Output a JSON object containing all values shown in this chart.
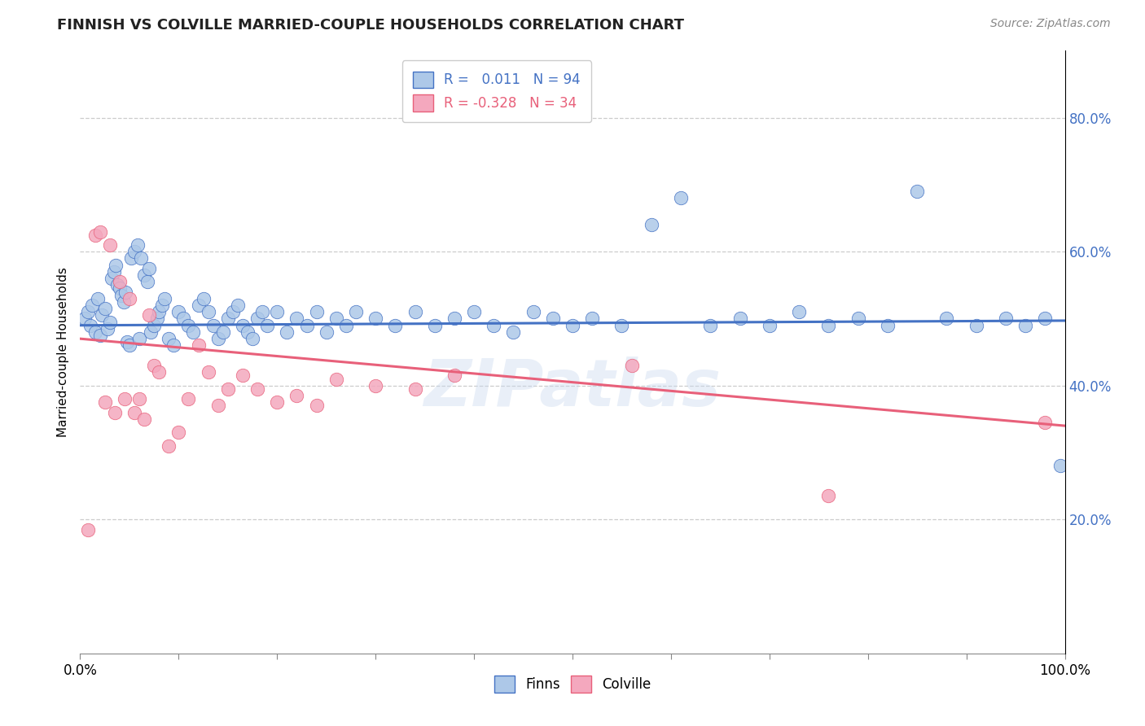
{
  "title": "FINNISH VS COLVILLE MARRIED-COUPLE HOUSEHOLDS CORRELATION CHART",
  "source": "Source: ZipAtlas.com",
  "ylabel": "Married-couple Households",
  "xlim": [
    0.0,
    1.0
  ],
  "ylim": [
    0.0,
    0.9
  ],
  "finn_R": 0.011,
  "finn_N": 94,
  "colville_R": -0.328,
  "colville_N": 34,
  "finn_color": "#adc8e8",
  "colville_color": "#f4a8be",
  "finn_line_color": "#4472c4",
  "colville_line_color": "#e8607a",
  "background_color": "#ffffff",
  "watermark": "ZIPatlas",
  "xtick_positions": [
    0.0,
    0.1,
    0.2,
    0.3,
    0.4,
    0.5,
    0.6,
    0.7,
    0.8,
    0.9,
    1.0
  ],
  "ytick_positions": [
    0.2,
    0.4,
    0.6,
    0.8
  ],
  "ytick_labels": [
    "20.0%",
    "40.0%",
    "60.0%",
    "80.0%"
  ],
  "finn_x": [
    0.005,
    0.008,
    0.01,
    0.012,
    0.015,
    0.018,
    0.02,
    0.022,
    0.025,
    0.028,
    0.03,
    0.032,
    0.034,
    0.036,
    0.038,
    0.04,
    0.042,
    0.044,
    0.046,
    0.048,
    0.05,
    0.052,
    0.055,
    0.058,
    0.06,
    0.062,
    0.065,
    0.068,
    0.07,
    0.072,
    0.075,
    0.078,
    0.08,
    0.083,
    0.086,
    0.09,
    0.095,
    0.1,
    0.105,
    0.11,
    0.115,
    0.12,
    0.125,
    0.13,
    0.135,
    0.14,
    0.145,
    0.15,
    0.155,
    0.16,
    0.165,
    0.17,
    0.175,
    0.18,
    0.185,
    0.19,
    0.2,
    0.21,
    0.22,
    0.23,
    0.24,
    0.25,
    0.26,
    0.27,
    0.28,
    0.3,
    0.32,
    0.34,
    0.36,
    0.38,
    0.4,
    0.42,
    0.44,
    0.46,
    0.48,
    0.5,
    0.52,
    0.55,
    0.58,
    0.61,
    0.64,
    0.67,
    0.7,
    0.73,
    0.76,
    0.79,
    0.82,
    0.85,
    0.88,
    0.91,
    0.94,
    0.96,
    0.98,
    0.995
  ],
  "finn_y": [
    0.5,
    0.51,
    0.49,
    0.52,
    0.48,
    0.53,
    0.475,
    0.505,
    0.515,
    0.485,
    0.495,
    0.56,
    0.57,
    0.58,
    0.55,
    0.545,
    0.535,
    0.525,
    0.54,
    0.465,
    0.46,
    0.59,
    0.6,
    0.61,
    0.47,
    0.59,
    0.565,
    0.555,
    0.575,
    0.48,
    0.49,
    0.5,
    0.51,
    0.52,
    0.53,
    0.47,
    0.46,
    0.51,
    0.5,
    0.49,
    0.48,
    0.52,
    0.53,
    0.51,
    0.49,
    0.47,
    0.48,
    0.5,
    0.51,
    0.52,
    0.49,
    0.48,
    0.47,
    0.5,
    0.51,
    0.49,
    0.51,
    0.48,
    0.5,
    0.49,
    0.51,
    0.48,
    0.5,
    0.49,
    0.51,
    0.5,
    0.49,
    0.51,
    0.49,
    0.5,
    0.51,
    0.49,
    0.48,
    0.51,
    0.5,
    0.49,
    0.5,
    0.49,
    0.64,
    0.68,
    0.49,
    0.5,
    0.49,
    0.51,
    0.49,
    0.5,
    0.49,
    0.69,
    0.5,
    0.49,
    0.5,
    0.49,
    0.5,
    0.28
  ],
  "colville_x": [
    0.008,
    0.015,
    0.02,
    0.025,
    0.03,
    0.035,
    0.04,
    0.045,
    0.05,
    0.055,
    0.06,
    0.065,
    0.07,
    0.075,
    0.08,
    0.09,
    0.1,
    0.11,
    0.12,
    0.13,
    0.14,
    0.15,
    0.165,
    0.18,
    0.2,
    0.22,
    0.24,
    0.26,
    0.3,
    0.34,
    0.38,
    0.56,
    0.76,
    0.98
  ],
  "colville_y": [
    0.185,
    0.625,
    0.63,
    0.375,
    0.61,
    0.36,
    0.555,
    0.38,
    0.53,
    0.36,
    0.38,
    0.35,
    0.505,
    0.43,
    0.42,
    0.31,
    0.33,
    0.38,
    0.46,
    0.42,
    0.37,
    0.395,
    0.415,
    0.395,
    0.375,
    0.385,
    0.37,
    0.41,
    0.4,
    0.395,
    0.415,
    0.43,
    0.235,
    0.345
  ]
}
